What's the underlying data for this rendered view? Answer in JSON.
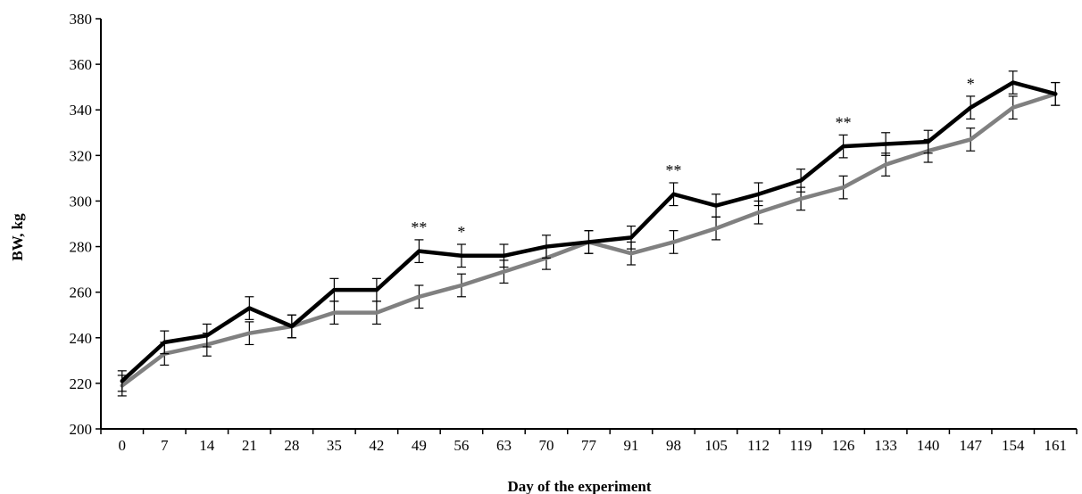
{
  "chart_data": {
    "type": "line",
    "xlabel": "Day of the experiment",
    "ylabel": "BW, kg",
    "ylim": [
      200,
      380
    ],
    "yticks": [
      200,
      220,
      240,
      260,
      280,
      300,
      320,
      340,
      360,
      380
    ],
    "categories": [
      "0",
      "7",
      "14",
      "21",
      "28",
      "35",
      "42",
      "49",
      "56",
      "63",
      "70",
      "77",
      "91",
      "98",
      "105",
      "112",
      "119",
      "126",
      "133",
      "140",
      "147",
      "154",
      "161"
    ],
    "grid": false,
    "legend": "none",
    "series": [
      {
        "color": "#000000",
        "values": [
          221,
          238,
          241,
          253,
          245,
          261,
          261,
          278,
          276,
          276,
          280,
          282,
          284,
          303,
          298,
          303,
          309,
          324,
          325,
          326,
          341,
          352,
          347
        ],
        "errors": [
          4.5,
          5,
          5,
          5,
          5,
          5,
          5,
          5,
          5,
          5,
          5,
          5,
          5,
          5,
          5,
          5,
          5,
          5,
          5,
          5,
          5,
          5,
          5
        ]
      },
      {
        "color": "#808080",
        "values": [
          219,
          233,
          237,
          242,
          245,
          251,
          251,
          258,
          263,
          269,
          275,
          282,
          277,
          282,
          288,
          295,
          301,
          306,
          316,
          322,
          327,
          341,
          347
        ],
        "errors": [
          4.5,
          5,
          5,
          5,
          5,
          5,
          5,
          5,
          5,
          5,
          5,
          5,
          5,
          5,
          5,
          5,
          5,
          5,
          5,
          5,
          5,
          5,
          5
        ]
      }
    ],
    "annotations": [
      {
        "category": "49",
        "text": "**"
      },
      {
        "category": "56",
        "text": "*"
      },
      {
        "category": "98",
        "text": "**"
      },
      {
        "category": "126",
        "text": "**"
      },
      {
        "category": "147",
        "text": "*"
      }
    ]
  }
}
